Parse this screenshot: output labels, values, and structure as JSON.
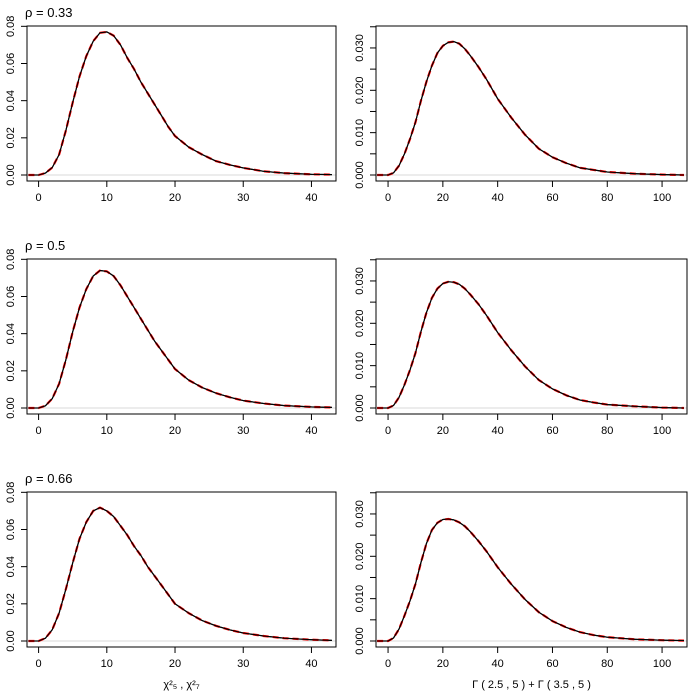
{
  "chart_data": [
    {
      "type": "line",
      "title": "ρ = 0.33",
      "xlabel": "",
      "xlim": [
        -1.7,
        43.6
      ],
      "ylim": [
        0,
        0.0834
      ],
      "xticks": [
        0,
        10,
        20,
        30,
        40
      ],
      "yticks": [
        0,
        0.02,
        0.04,
        0.06,
        0.08
      ],
      "ytick_labels": [
        "0.00",
        "0.02",
        "0.04",
        "0.06",
        "0.08"
      ],
      "x": [
        -1.5,
        0,
        1,
        2,
        3,
        4,
        5,
        6,
        7,
        8,
        9,
        10,
        11,
        12,
        13,
        14,
        15,
        16,
        17,
        18,
        19,
        20,
        22,
        24,
        26,
        28,
        30,
        33,
        36,
        40,
        43
      ],
      "series": [
        {
          "color": "#000000",
          "style": "solid",
          "values": [
            0,
            0,
            0.001,
            0.004,
            0.011,
            0.024,
            0.039,
            0.053,
            0.064,
            0.072,
            0.0765,
            0.077,
            0.075,
            0.07,
            0.063,
            0.057,
            0.05,
            0.044,
            0.038,
            0.032,
            0.026,
            0.021,
            0.015,
            0.011,
            0.0075,
            0.0055,
            0.0038,
            0.002,
            0.001,
            0.0004,
            0.0002
          ]
        },
        {
          "color": "#ff0000",
          "style": "dashed",
          "values": [
            0,
            0,
            0.001,
            0.004,
            0.011,
            0.024,
            0.039,
            0.053,
            0.064,
            0.072,
            0.0765,
            0.077,
            0.075,
            0.07,
            0.063,
            0.057,
            0.05,
            0.044,
            0.038,
            0.032,
            0.026,
            0.021,
            0.015,
            0.011,
            0.0075,
            0.0055,
            0.0038,
            0.002,
            0.001,
            0.0004,
            0.0002
          ]
        }
      ]
    },
    {
      "type": "line",
      "title": "",
      "xlabel": "",
      "xlim": [
        -4.4,
        109.1
      ],
      "ylim": [
        0,
        0.0366
      ],
      "xticks": [
        0,
        20,
        40,
        60,
        80,
        100
      ],
      "yticks": [
        0,
        0.005,
        0.01,
        0.015,
        0.02,
        0.025,
        0.03,
        0.035
      ],
      "ytick_labels": [
        "0.000",
        "",
        "0.010",
        "",
        "0.020",
        "",
        "0.030",
        ""
      ],
      "x": [
        -4,
        0,
        2,
        4,
        6,
        8,
        10,
        12,
        14,
        16,
        18,
        20,
        22,
        24,
        26,
        28,
        30,
        33,
        36,
        40,
        45,
        50,
        55,
        60,
        65,
        70,
        75,
        80,
        90,
        100,
        108
      ],
      "series": [
        {
          "color": "#000000",
          "style": "solid",
          "values": [
            0,
            0,
            0.0005,
            0.0022,
            0.005,
            0.0085,
            0.0125,
            0.0175,
            0.022,
            0.0258,
            0.0288,
            0.0305,
            0.0313,
            0.0315,
            0.031,
            0.0298,
            0.0282,
            0.0255,
            0.0225,
            0.018,
            0.0135,
            0.0095,
            0.0062,
            0.0042,
            0.0028,
            0.0017,
            0.0012,
            0.0007,
            0.0003,
            0.0001,
            0
          ]
        },
        {
          "color": "#ff0000",
          "style": "dashed",
          "values": [
            0,
            0,
            0.0005,
            0.0022,
            0.005,
            0.0085,
            0.0125,
            0.0175,
            0.022,
            0.0258,
            0.0288,
            0.0305,
            0.0313,
            0.0315,
            0.031,
            0.0298,
            0.0282,
            0.0255,
            0.0225,
            0.018,
            0.0135,
            0.0095,
            0.0062,
            0.0042,
            0.0028,
            0.0017,
            0.0012,
            0.0007,
            0.0003,
            0.0001,
            0
          ]
        }
      ]
    },
    {
      "type": "line",
      "title": "ρ = 0.5",
      "xlabel": "",
      "xlim": [
        -1.7,
        43.6
      ],
      "ylim": [
        0,
        0.0834
      ],
      "xticks": [
        0,
        10,
        20,
        30,
        40
      ],
      "yticks": [
        0,
        0.02,
        0.04,
        0.06,
        0.08
      ],
      "ytick_labels": [
        "0.00",
        "0.02",
        "0.04",
        "0.06",
        "0.08"
      ],
      "x": [
        -1.5,
        0,
        1,
        2,
        3,
        4,
        5,
        6,
        7,
        8,
        9,
        10,
        11,
        12,
        13,
        14,
        15,
        16,
        17,
        18,
        19,
        20,
        22,
        24,
        26,
        28,
        30,
        33,
        36,
        40,
        43
      ],
      "series": [
        {
          "color": "#000000",
          "style": "solid",
          "values": [
            0,
            0,
            0.0012,
            0.005,
            0.013,
            0.026,
            0.041,
            0.054,
            0.064,
            0.071,
            0.074,
            0.0735,
            0.071,
            0.066,
            0.06,
            0.054,
            0.048,
            0.042,
            0.036,
            0.031,
            0.026,
            0.021,
            0.015,
            0.011,
            0.008,
            0.0058,
            0.004,
            0.0024,
            0.0013,
            0.0006,
            0.0003
          ]
        },
        {
          "color": "#ff0000",
          "style": "dashed",
          "values": [
            0,
            0,
            0.0012,
            0.005,
            0.013,
            0.026,
            0.041,
            0.054,
            0.064,
            0.071,
            0.074,
            0.0735,
            0.071,
            0.066,
            0.06,
            0.054,
            0.048,
            0.042,
            0.036,
            0.031,
            0.026,
            0.021,
            0.015,
            0.011,
            0.008,
            0.0058,
            0.004,
            0.0024,
            0.0013,
            0.0006,
            0.0003
          ]
        }
      ]
    },
    {
      "type": "line",
      "title": "",
      "xlabel": "",
      "xlim": [
        -4.4,
        109.1
      ],
      "ylim": [
        0,
        0.0366
      ],
      "xticks": [
        0,
        20,
        40,
        60,
        80,
        100
      ],
      "yticks": [
        0,
        0.005,
        0.01,
        0.015,
        0.02,
        0.025,
        0.03,
        0.035
      ],
      "ytick_labels": [
        "0.000",
        "",
        "0.010",
        "",
        "0.020",
        "",
        "0.030",
        ""
      ],
      "x": [
        -4,
        0,
        2,
        4,
        6,
        8,
        10,
        12,
        14,
        16,
        18,
        20,
        22,
        24,
        26,
        28,
        30,
        33,
        36,
        40,
        45,
        50,
        55,
        60,
        65,
        70,
        75,
        80,
        90,
        100,
        108
      ],
      "series": [
        {
          "color": "#000000",
          "style": "solid",
          "values": [
            0,
            0,
            0.0006,
            0.0025,
            0.0055,
            0.009,
            0.013,
            0.018,
            0.0225,
            0.026,
            0.0282,
            0.0294,
            0.0298,
            0.0297,
            0.0292,
            0.0282,
            0.0268,
            0.0245,
            0.0218,
            0.0178,
            0.0136,
            0.0098,
            0.0066,
            0.0045,
            0.003,
            0.0019,
            0.0013,
            0.0008,
            0.0004,
            0.0001,
            0
          ]
        },
        {
          "color": "#ff0000",
          "style": "dashed",
          "values": [
            0,
            0,
            0.0006,
            0.0025,
            0.0055,
            0.009,
            0.013,
            0.018,
            0.0225,
            0.026,
            0.0282,
            0.0294,
            0.0298,
            0.0297,
            0.0292,
            0.0282,
            0.0268,
            0.0245,
            0.0218,
            0.0178,
            0.0136,
            0.0098,
            0.0066,
            0.0045,
            0.003,
            0.0019,
            0.0013,
            0.0008,
            0.0004,
            0.0001,
            0
          ]
        }
      ]
    },
    {
      "type": "line",
      "title": "ρ = 0.66",
      "xlabel": "χ²₅ , χ²₇",
      "xlim": [
        -1.7,
        43.6
      ],
      "ylim": [
        0,
        0.0834
      ],
      "xticks": [
        0,
        10,
        20,
        30,
        40
      ],
      "yticks": [
        0,
        0.02,
        0.04,
        0.06,
        0.08
      ],
      "ytick_labels": [
        "0.00",
        "0.02",
        "0.04",
        "0.06",
        "0.08"
      ],
      "x": [
        -1.5,
        0,
        1,
        2,
        3,
        4,
        5,
        6,
        7,
        8,
        9,
        10,
        11,
        12,
        13,
        14,
        15,
        16,
        17,
        18,
        19,
        20,
        22,
        24,
        26,
        28,
        30,
        33,
        36,
        40,
        43
      ],
      "series": [
        {
          "color": "#000000",
          "style": "solid",
          "values": [
            0,
            0,
            0.0015,
            0.006,
            0.015,
            0.028,
            0.042,
            0.055,
            0.064,
            0.07,
            0.0718,
            0.07,
            0.067,
            0.062,
            0.057,
            0.051,
            0.046,
            0.04,
            0.035,
            0.03,
            0.025,
            0.02,
            0.015,
            0.011,
            0.0082,
            0.006,
            0.0043,
            0.0027,
            0.0015,
            0.0007,
            0.0003
          ]
        },
        {
          "color": "#ff0000",
          "style": "dashed",
          "values": [
            0,
            0,
            0.0015,
            0.006,
            0.015,
            0.028,
            0.042,
            0.055,
            0.064,
            0.07,
            0.0718,
            0.07,
            0.067,
            0.062,
            0.057,
            0.051,
            0.046,
            0.04,
            0.035,
            0.03,
            0.025,
            0.02,
            0.015,
            0.011,
            0.0082,
            0.006,
            0.0043,
            0.0027,
            0.0015,
            0.0007,
            0.0003
          ]
        }
      ]
    },
    {
      "type": "line",
      "title": "",
      "xlabel": "Γ ( 2.5 , 5 ) + Γ ( 3.5 , 5 )",
      "xlim": [
        -4.4,
        109.1
      ],
      "ylim": [
        0,
        0.0366
      ],
      "xticks": [
        0,
        20,
        40,
        60,
        80,
        100
      ],
      "yticks": [
        0,
        0.005,
        0.01,
        0.015,
        0.02,
        0.025,
        0.03,
        0.035
      ],
      "ytick_labels": [
        "0.000",
        "",
        "0.010",
        "",
        "0.020",
        "",
        "0.030",
        ""
      ],
      "x": [
        -4,
        0,
        2,
        4,
        6,
        8,
        10,
        12,
        14,
        16,
        18,
        20,
        22,
        24,
        26,
        28,
        30,
        33,
        36,
        40,
        45,
        50,
        55,
        60,
        65,
        70,
        75,
        80,
        90,
        100,
        108
      ],
      "series": [
        {
          "color": "#000000",
          "style": "solid",
          "values": [
            0,
            0,
            0.0007,
            0.0028,
            0.006,
            0.0095,
            0.0135,
            0.0185,
            0.023,
            0.0262,
            0.0279,
            0.0287,
            0.0288,
            0.0286,
            0.028,
            0.0271,
            0.0258,
            0.0236,
            0.0211,
            0.0174,
            0.0134,
            0.0098,
            0.0068,
            0.0047,
            0.0032,
            0.0021,
            0.0014,
            0.0009,
            0.0004,
            0.0002,
            0.0001
          ]
        },
        {
          "color": "#ff0000",
          "style": "dashed",
          "values": [
            0,
            0,
            0.0007,
            0.0028,
            0.006,
            0.0095,
            0.0135,
            0.0185,
            0.023,
            0.0262,
            0.0279,
            0.0287,
            0.0288,
            0.0286,
            0.028,
            0.0271,
            0.0258,
            0.0236,
            0.0211,
            0.0174,
            0.0134,
            0.0098,
            0.0068,
            0.0047,
            0.0032,
            0.0021,
            0.0014,
            0.0009,
            0.0004,
            0.0002,
            0.0001
          ]
        }
      ]
    }
  ]
}
